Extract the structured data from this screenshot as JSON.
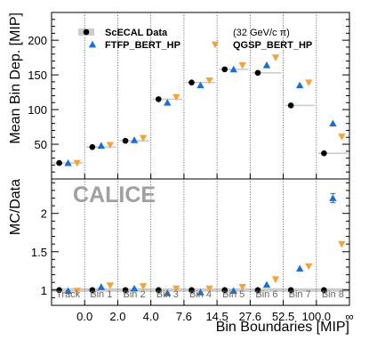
{
  "chart_data": {
    "type": "scatter",
    "bins": [
      "Track",
      "Bin 1",
      "Bin 2",
      "Bin 3",
      "Bin 4",
      "Bin 5",
      "Bin 6",
      "Bin 7",
      "Bin 8"
    ],
    "boundary_labels": [
      "0.0",
      "2.0",
      "4.0",
      "7.6",
      "14.5",
      "27.6",
      "52.5",
      "100.0",
      "∞"
    ],
    "xlabel": "Bin Boundaries [MIP]",
    "top": {
      "ylabel": "Mean Bin Dep. [MIP]",
      "ylim": [
        0,
        240
      ],
      "yticks": [
        50,
        100,
        150,
        200
      ],
      "series": [
        {
          "name": "ScECAL Data",
          "marker": "circle",
          "color": "#000000",
          "values": [
            23,
            46,
            55,
            115,
            139,
            158,
            153,
            106,
            37
          ]
        },
        {
          "name": "FTFP_BERT_HP",
          "marker": "triangle-up",
          "color": "#1a6fd1",
          "values": [
            23,
            48,
            56,
            110,
            135,
            158,
            164,
            135,
            80
          ]
        },
        {
          "name": "QGSP_BERT_HP",
          "marker": "triangle-down",
          "color": "#f5a23c",
          "values": [
            23,
            49,
            59,
            118,
            142,
            164,
            175,
            139,
            61
          ]
        }
      ]
    },
    "bottom": {
      "ylabel": "MC/Data",
      "ylim": [
        0.8,
        2.45
      ],
      "yticks": [
        1,
        1.5,
        2
      ],
      "yticklabels": [
        "1",
        "1.5",
        "2"
      ],
      "series": [
        {
          "name": "ScECAL Data",
          "marker": "circle",
          "color": "#000000",
          "values": [
            1.0,
            1.0,
            1.0,
            1.0,
            1.0,
            1.0,
            1.0,
            1.0,
            1.0
          ]
        },
        {
          "name": "FTFP_BERT_HP",
          "marker": "triangle-up",
          "color": "#1a6fd1",
          "values": [
            0.99,
            1.04,
            1.02,
            0.96,
            0.97,
            0.99,
            1.07,
            1.28,
            2.2
          ]
        },
        {
          "name": "QGSP_BERT_HP",
          "marker": "triangle-down",
          "color": "#f5a23c",
          "values": [
            0.99,
            1.06,
            1.05,
            1.02,
            1.02,
            1.04,
            1.14,
            1.31,
            1.6
          ]
        }
      ]
    },
    "legend": {
      "position": "top-left",
      "note": "(32 GeV/c π)"
    },
    "watermark": "CALICE"
  }
}
